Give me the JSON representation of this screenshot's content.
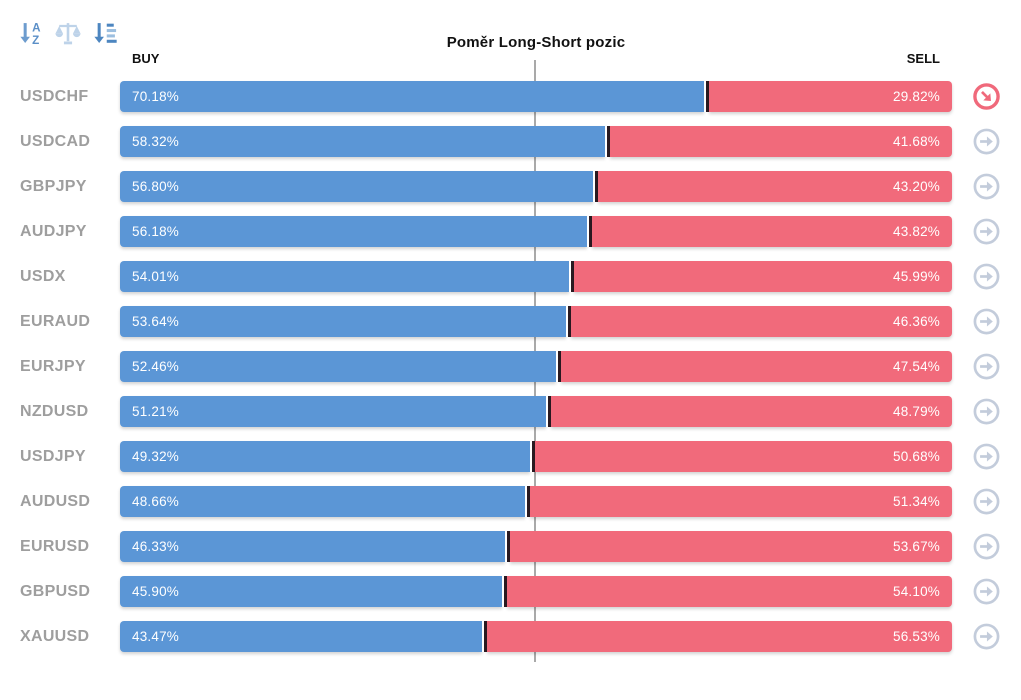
{
  "header": {
    "title": "Poměr Long-Short pozic",
    "buy_label": "BUY",
    "sell_label": "SELL"
  },
  "toolbar": {
    "icons": [
      {
        "name": "sort-alpha-down-icon"
      },
      {
        "name": "balance-scale-icon"
      },
      {
        "name": "sort-amount-down-icon"
      }
    ]
  },
  "chart_data": {
    "type": "bar",
    "orientation": "horizontal-stacked",
    "title": "Poměr Long-Short pozic",
    "categories": [
      "USDCHF",
      "USDCAD",
      "GBPJPY",
      "AUDJPY",
      "USDX",
      "EURAUD",
      "EURJPY",
      "NZDUSD",
      "USDJPY",
      "AUDUSD",
      "EURUSD",
      "GBPUSD",
      "XAUUSD"
    ],
    "series": [
      {
        "name": "BUY",
        "values": [
          70.18,
          58.32,
          56.8,
          56.18,
          54.01,
          53.64,
          52.46,
          51.21,
          49.32,
          48.66,
          46.33,
          45.9,
          43.47
        ]
      },
      {
        "name": "SELL",
        "values": [
          29.82,
          41.68,
          43.2,
          43.82,
          45.99,
          46.36,
          47.54,
          48.79,
          50.68,
          51.34,
          53.67,
          54.1,
          56.53
        ]
      }
    ],
    "value_format": "percent",
    "xlim": [
      0,
      100
    ],
    "center_gridline_at": 50,
    "grid": false,
    "legend": "none"
  },
  "colors": {
    "buy": "#5b96d6",
    "sell": "#f16a7b",
    "divider": "#2b1b22",
    "center_line": "#a9a9a9",
    "pair_label": "#9e9e9e",
    "highlight_icon": "#f0697b",
    "default_icon": "#c3ccdb"
  },
  "action_column": {
    "highlight_index": 0,
    "highlight_icon": "arrow-down-right-circle-icon",
    "default_icon": "arrow-right-circle-icon"
  }
}
